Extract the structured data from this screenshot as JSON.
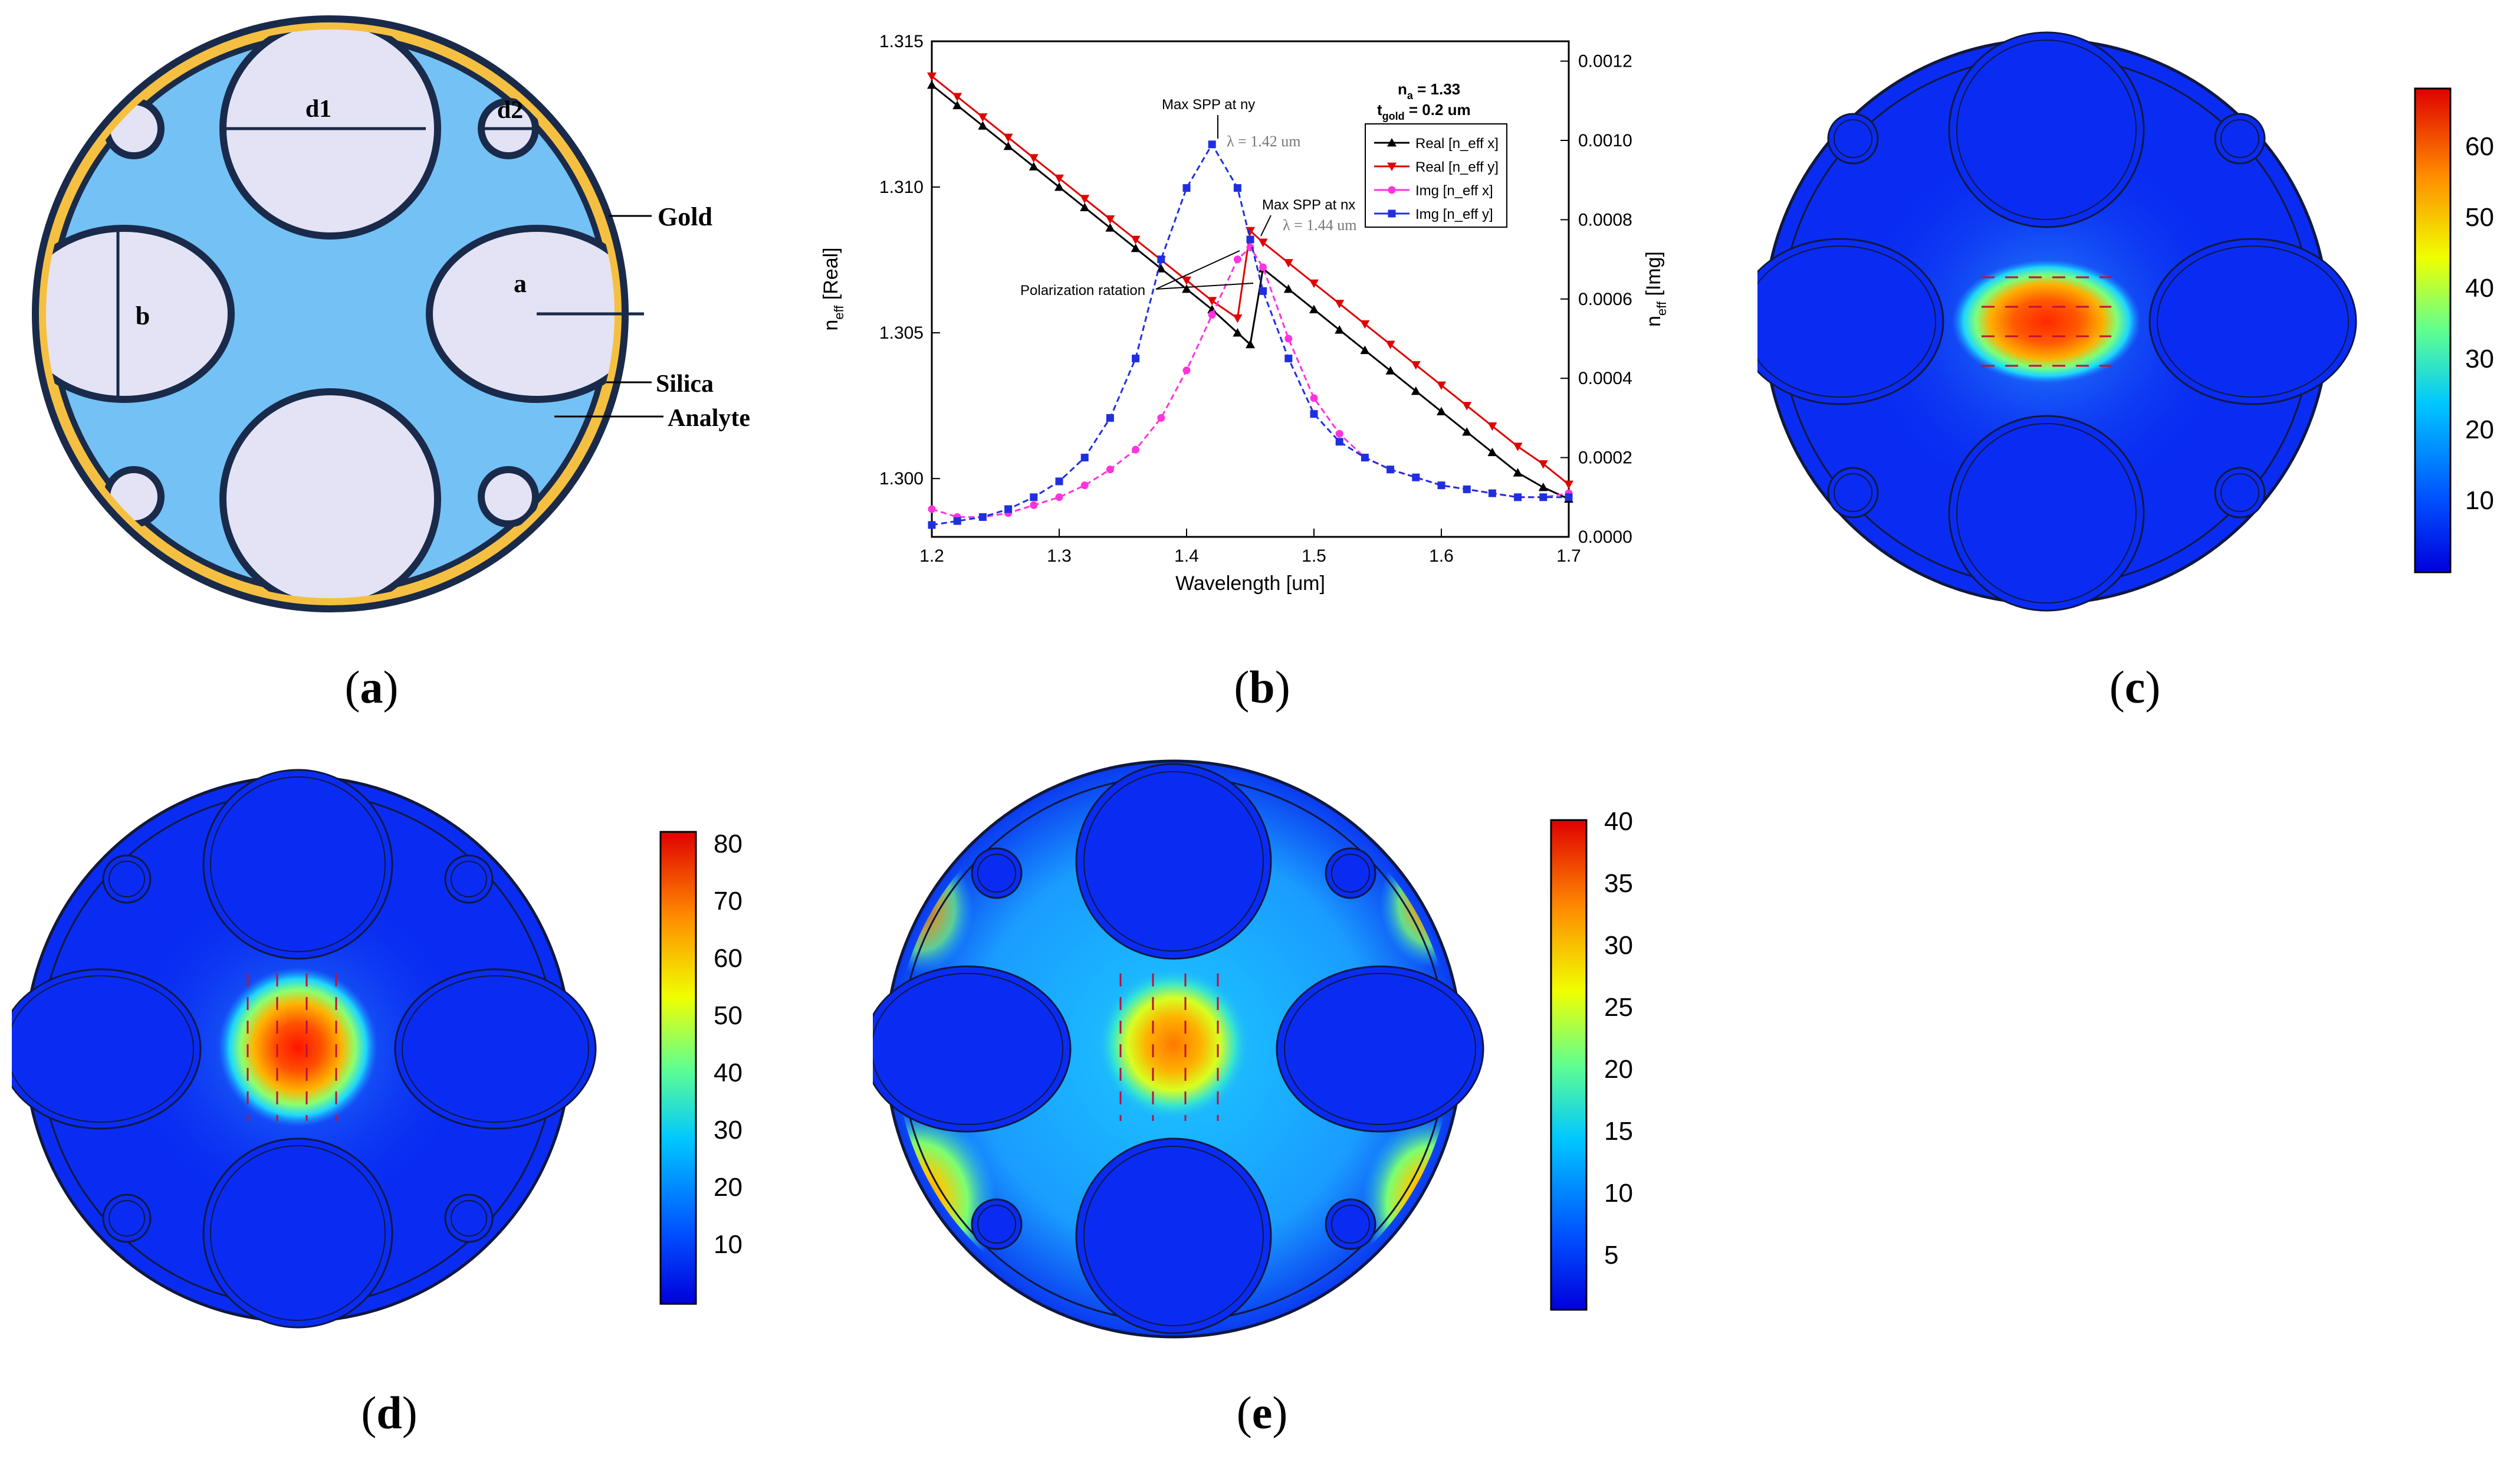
{
  "captions": [
    {
      "open": "(",
      "letter": "a",
      "close": ")"
    },
    {
      "open": "(",
      "letter": "b",
      "close": ")"
    },
    {
      "open": "(",
      "letter": "c",
      "close": ")"
    },
    {
      "open": "(",
      "letter": "d",
      "close": ")"
    },
    {
      "open": "(",
      "letter": "e",
      "close": ")"
    }
  ],
  "schematic": {
    "labels": {
      "d1": "d1",
      "d2": "d2",
      "a": "a",
      "b": "b",
      "gold": "Gold",
      "silica": "Silica",
      "analyte": "Analyte"
    },
    "colors": {
      "gold": "#f5c041",
      "silica": "#74c1f5",
      "hole": "#e3e3f5",
      "outline": "#1a2a4a"
    }
  },
  "colorbars": {
    "c": {
      "ticks": [
        "10",
        "20",
        "30",
        "40",
        "50",
        "60"
      ]
    },
    "d": {
      "ticks": [
        "10",
        "20",
        "30",
        "40",
        "50",
        "60",
        "70",
        "80"
      ]
    },
    "e": {
      "ticks": [
        "5",
        "10",
        "15",
        "20",
        "25",
        "30",
        "35",
        "40"
      ]
    }
  },
  "chart_data": {
    "type": "line",
    "xlabel": "Wavelength [um]",
    "ylabel_left": "n_eff [Real]",
    "ylabel_right": "n_eff [Img]",
    "xlim": [
      1.2,
      1.7
    ],
    "ylim_left": [
      1.298,
      1.315
    ],
    "ylim_right": [
      0.0,
      0.00125
    ],
    "x_ticks": [
      "1.2",
      "1.3",
      "1.4",
      "1.5",
      "1.6",
      "1.7"
    ],
    "yl_ticks": [
      "1.300",
      "1.305",
      "1.310",
      "1.315"
    ],
    "yr_ticks": [
      "0.0000",
      "0.0002",
      "0.0004",
      "0.0006",
      "0.0008",
      "0.0010",
      "0.0012"
    ],
    "info": {
      "na": "n_a = 1.33",
      "tgold": "t_gold = 0.2 um"
    },
    "annotations": {
      "max_ny": "Max SPP at ny",
      "lambda_ny": "λ = 1.42 um",
      "max_nx": "Max SPP at nx",
      "lambda_nx": "λ = 1.44 um",
      "polarization": "Polarization ratation"
    },
    "series": [
      {
        "name": "Real [n_eff x]",
        "axis": "left",
        "color": "#000000",
        "marker": "tri-up",
        "x": [
          1.2,
          1.22,
          1.24,
          1.26,
          1.28,
          1.3,
          1.32,
          1.34,
          1.36,
          1.38,
          1.4,
          1.42,
          1.44,
          1.45,
          1.46,
          1.48,
          1.5,
          1.52,
          1.54,
          1.56,
          1.58,
          1.6,
          1.62,
          1.64,
          1.66,
          1.68,
          1.7
        ],
        "y": [
          1.3135,
          1.3128,
          1.3121,
          1.3114,
          1.3107,
          1.31,
          1.3093,
          1.3086,
          1.3079,
          1.3072,
          1.3065,
          1.3058,
          1.305,
          1.3046,
          1.3072,
          1.3065,
          1.3058,
          1.3051,
          1.3044,
          1.3037,
          1.303,
          1.3023,
          1.3016,
          1.3009,
          1.3002,
          1.2997,
          1.2993
        ]
      },
      {
        "name": "Real [n_eff y]",
        "axis": "left",
        "color": "#e00000",
        "marker": "tri-down",
        "x": [
          1.2,
          1.22,
          1.24,
          1.26,
          1.28,
          1.3,
          1.32,
          1.34,
          1.36,
          1.38,
          1.4,
          1.42,
          1.44,
          1.45,
          1.46,
          1.48,
          1.5,
          1.52,
          1.54,
          1.56,
          1.58,
          1.6,
          1.62,
          1.64,
          1.66,
          1.68,
          1.7
        ],
        "y": [
          1.3138,
          1.3131,
          1.3124,
          1.3117,
          1.311,
          1.3103,
          1.3096,
          1.3089,
          1.3082,
          1.3075,
          1.3068,
          1.3061,
          1.3055,
          1.3085,
          1.3081,
          1.3074,
          1.3067,
          1.306,
          1.3053,
          1.3046,
          1.3039,
          1.3032,
          1.3025,
          1.3018,
          1.3011,
          1.3005,
          1.2998
        ]
      },
      {
        "name": "Img [n_eff x]",
        "axis": "right",
        "color": "#ff33dd",
        "marker": "circle",
        "x": [
          1.2,
          1.22,
          1.24,
          1.26,
          1.28,
          1.3,
          1.32,
          1.34,
          1.36,
          1.38,
          1.4,
          1.42,
          1.44,
          1.45,
          1.46,
          1.48,
          1.5,
          1.52,
          1.54,
          1.56,
          1.58,
          1.6,
          1.62,
          1.64,
          1.66,
          1.68,
          1.7
        ],
        "y": [
          7e-05,
          5e-05,
          5e-05,
          6e-05,
          8e-05,
          0.0001,
          0.00013,
          0.00017,
          0.00022,
          0.0003,
          0.00042,
          0.00056,
          0.0007,
          0.00073,
          0.00068,
          0.0005,
          0.00035,
          0.00026,
          0.0002,
          0.00017,
          0.00015,
          0.00013,
          0.00012,
          0.00011,
          0.0001,
          0.0001,
          0.00011
        ]
      },
      {
        "name": "Img [n_eff y]",
        "axis": "right",
        "color": "#1f2fe0",
        "marker": "square",
        "x": [
          1.2,
          1.22,
          1.24,
          1.26,
          1.28,
          1.3,
          1.32,
          1.34,
          1.36,
          1.38,
          1.4,
          1.42,
          1.44,
          1.45,
          1.46,
          1.48,
          1.5,
          1.52,
          1.54,
          1.56,
          1.58,
          1.6,
          1.62,
          1.64,
          1.66,
          1.68,
          1.7
        ],
        "y": [
          3e-05,
          4e-05,
          5e-05,
          7e-05,
          0.0001,
          0.00014,
          0.0002,
          0.0003,
          0.00045,
          0.0007,
          0.00088,
          0.00099,
          0.00088,
          0.00075,
          0.00062,
          0.00045,
          0.00031,
          0.00024,
          0.0002,
          0.00017,
          0.00015,
          0.00013,
          0.00012,
          0.00011,
          0.0001,
          0.0001,
          0.0001
        ]
      }
    ]
  }
}
